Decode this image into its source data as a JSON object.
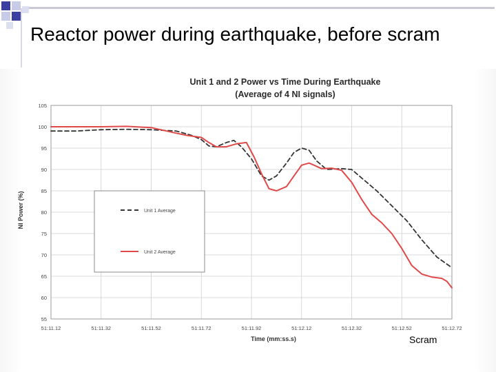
{
  "slide": {
    "title": "Reactor power during earthquake, before scram",
    "annotation": "Scram"
  },
  "chart_data": {
    "type": "line",
    "title": "Unit 1 and 2 Power vs Time During Earthquake",
    "subtitle": "(Average of 4 NI signals)",
    "xlabel": "Time (mm:ss.s)",
    "ylabel": "NI Power (%)",
    "ylim": [
      55,
      105
    ],
    "yticks": [
      55,
      60,
      65,
      70,
      75,
      80,
      85,
      90,
      95,
      100,
      105
    ],
    "xlim": [
      0,
      80
    ],
    "xticks": [
      {
        "x": 0,
        "label": "51:11.12"
      },
      {
        "x": 10,
        "label": "51:11.32"
      },
      {
        "x": 20,
        "label": "51:11.52"
      },
      {
        "x": 30,
        "label": "51:11.72"
      },
      {
        "x": 40,
        "label": "51:11.92"
      },
      {
        "x": 50,
        "label": "51:12.12"
      },
      {
        "x": 60,
        "label": "51:12.32"
      },
      {
        "x": 70,
        "label": "51:12.52"
      },
      {
        "x": 80,
        "label": "51:12.72"
      }
    ],
    "grid": true,
    "legend_position": "left",
    "series": [
      {
        "name": "Unit 1 Average",
        "color": "#333333",
        "style": "dashed",
        "x": [
          0,
          5,
          10,
          15,
          20,
          25,
          28,
          30,
          31.5,
          33,
          35,
          36.5,
          38,
          40,
          42,
          43.5,
          45,
          47,
          48.5,
          50,
          51.5,
          53,
          55,
          58,
          60,
          62,
          65,
          68,
          71,
          74,
          77,
          80
        ],
        "y": [
          99.0,
          99.0,
          99.3,
          99.4,
          99.3,
          99.0,
          98.0,
          97.0,
          95.5,
          95.3,
          96.3,
          96.8,
          95.3,
          92.5,
          88.5,
          87.5,
          88.5,
          91.5,
          94.0,
          95.0,
          94.5,
          92.0,
          90.0,
          90.2,
          90.0,
          88.0,
          85.0,
          81.5,
          78.0,
          73.5,
          69.5,
          67.0
        ]
      },
      {
        "name": "Unit 2 Average",
        "color": "#e04848",
        "style": "solid",
        "x": [
          0,
          5,
          10,
          15,
          20,
          25,
          27,
          30,
          31.5,
          33,
          35,
          37,
          39,
          40.5,
          42,
          43.5,
          45,
          47,
          48.5,
          50,
          51.5,
          52.5,
          54,
          56,
          58,
          60,
          62,
          64,
          66,
          68,
          70,
          72,
          74,
          76,
          78,
          79,
          80
        ],
        "y": [
          100.0,
          100.0,
          100.0,
          100.1,
          99.8,
          98.5,
          98.0,
          97.5,
          96.3,
          95.3,
          95.3,
          96.0,
          96.3,
          93.0,
          89.0,
          85.5,
          85.0,
          86.0,
          88.5,
          91.0,
          91.5,
          91.0,
          90.2,
          90.3,
          89.8,
          87.0,
          83.0,
          79.5,
          77.5,
          75.0,
          71.5,
          67.5,
          65.5,
          64.8,
          64.5,
          63.8,
          62.3
        ]
      }
    ]
  }
}
